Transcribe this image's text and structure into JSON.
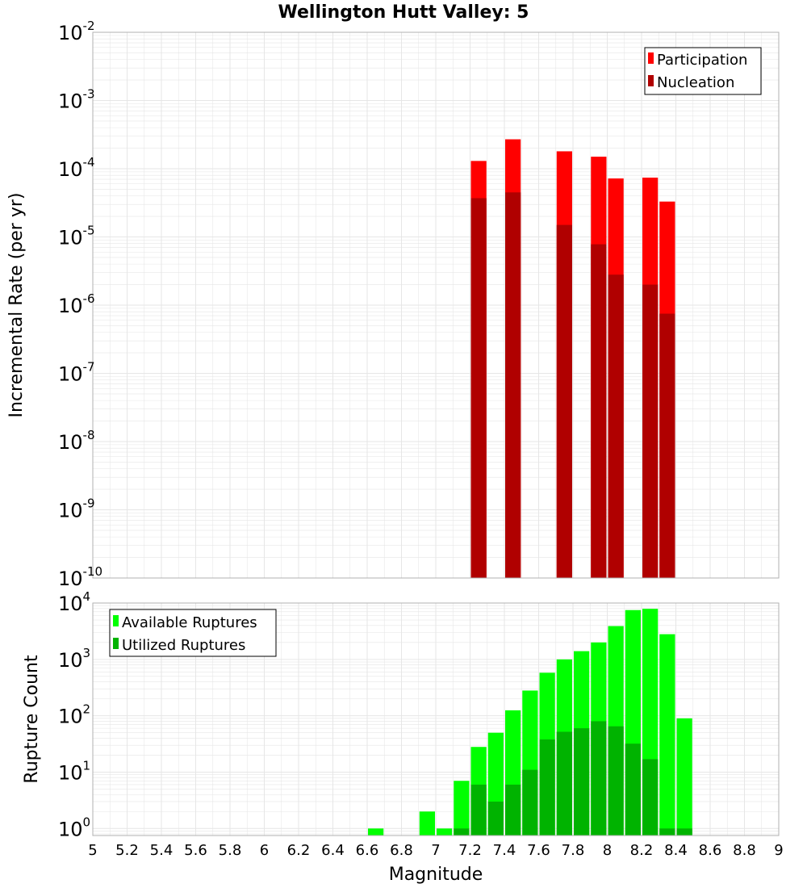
{
  "colors": {
    "participation": "#ff0000",
    "nucleation": "#b00000",
    "available": "#00ff00",
    "utilized": "#00b300",
    "grid": "#e6e6e6",
    "frame": "#b0b0b0"
  },
  "chart_data": [
    {
      "type": "bar",
      "title": "Wellington Hutt Valley: 5",
      "xlabel": "",
      "ylabel": "Incremental Rate (per yr)",
      "xlim": [
        5,
        9
      ],
      "ylim": [
        1e-10,
        0.01
      ],
      "yscale": "log",
      "bin_width": 0.1,
      "legend_position": "top-right",
      "y_ticks": [
        {
          "base": "10",
          "exp": "-2",
          "value": 0.01
        },
        {
          "base": "10",
          "exp": "-3",
          "value": 0.001
        },
        {
          "base": "10",
          "exp": "-4",
          "value": 0.0001
        },
        {
          "base": "10",
          "exp": "-5",
          "value": 1e-05
        },
        {
          "base": "10",
          "exp": "-6",
          "value": 1e-06
        },
        {
          "base": "10",
          "exp": "-7",
          "value": 1e-07
        },
        {
          "base": "10",
          "exp": "-8",
          "value": 1e-08
        },
        {
          "base": "10",
          "exp": "-9",
          "value": 1e-09
        },
        {
          "base": "10",
          "exp": "-10",
          "value": 1e-10
        }
      ],
      "series": [
        {
          "name": "Participation",
          "color": "#ff0000",
          "x": [
            7.25,
            7.45,
            7.75,
            7.95,
            8.05,
            8.25,
            8.35
          ],
          "values": [
            0.00013,
            0.00027,
            0.00018,
            0.00015,
            7.2e-05,
            7.4e-05,
            3.3e-05
          ]
        },
        {
          "name": "Nucleation",
          "color": "#b00000",
          "x": [
            7.25,
            7.45,
            7.75,
            7.95,
            8.05,
            8.25,
            8.35
          ],
          "values": [
            3.7e-05,
            4.5e-05,
            1.5e-05,
            7.8e-06,
            2.8e-06,
            2e-06,
            7.5e-07
          ]
        }
      ]
    },
    {
      "type": "bar",
      "title": "",
      "xlabel": "Magnitude",
      "ylabel": "Rupture Count",
      "xlim": [
        5,
        9
      ],
      "ylim": [
        0.75,
        10000
      ],
      "yscale": "log",
      "bin_width": 0.1,
      "legend_position": "top-left",
      "x_ticks": [
        "5",
        "5.2",
        "5.4",
        "5.6",
        "5.8",
        "6",
        "6.2",
        "6.4",
        "6.6",
        "6.8",
        "7",
        "7.2",
        "7.4",
        "7.6",
        "7.8",
        "8",
        "8.2",
        "8.4",
        "8.6",
        "8.8",
        "9"
      ],
      "y_ticks": [
        {
          "base": "10",
          "exp": "4",
          "value": 10000
        },
        {
          "base": "10",
          "exp": "3",
          "value": 1000
        },
        {
          "base": "10",
          "exp": "2",
          "value": 100
        },
        {
          "base": "10",
          "exp": "1",
          "value": 10
        },
        {
          "base": "10",
          "exp": "0",
          "value": 1
        }
      ],
      "series": [
        {
          "name": "Available Ruptures",
          "color": "#00ff00",
          "x": [
            6.65,
            6.95,
            7.05,
            7.15,
            7.25,
            7.35,
            7.45,
            7.55,
            7.65,
            7.75,
            7.85,
            7.95,
            8.05,
            8.15,
            8.25,
            8.35,
            8.45
          ],
          "values": [
            1,
            2,
            1,
            7,
            28,
            50,
            125,
            280,
            580,
            1000,
            1400,
            2000,
            3900,
            7500,
            7900,
            2800,
            90
          ]
        },
        {
          "name": "Utilized Ruptures",
          "color": "#00b300",
          "x": [
            7.15,
            7.25,
            7.35,
            7.45,
            7.55,
            7.65,
            7.75,
            7.85,
            7.95,
            8.05,
            8.15,
            8.25,
            8.35,
            8.45
          ],
          "values": [
            1,
            6,
            3,
            6,
            11,
            38,
            52,
            60,
            80,
            65,
            32,
            17,
            1,
            1
          ]
        }
      ]
    }
  ]
}
